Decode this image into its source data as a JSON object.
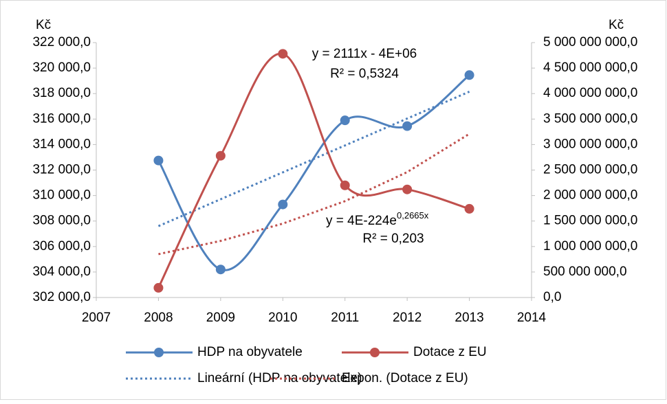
{
  "chart_data": {
    "type": "line",
    "x": [
      2008,
      2009,
      2010,
      2011,
      2012,
      2013
    ],
    "xlim": [
      2007,
      2014
    ],
    "xticks": [
      2007,
      2008,
      2009,
      2010,
      2011,
      2012,
      2013,
      2014
    ],
    "ylabel": "Kč",
    "y2label": "Kč",
    "ylim": [
      302000,
      322000
    ],
    "yticks": [
      {
        "value": 302000,
        "label": "302 000,0"
      },
      {
        "value": 304000,
        "label": "304 000,0"
      },
      {
        "value": 306000,
        "label": "306 000,0"
      },
      {
        "value": 308000,
        "label": "308 000,0"
      },
      {
        "value": 310000,
        "label": "310 000,0"
      },
      {
        "value": 312000,
        "label": "312 000,0"
      },
      {
        "value": 314000,
        "label": "314 000,0"
      },
      {
        "value": 316000,
        "label": "316 000,0"
      },
      {
        "value": 318000,
        "label": "318 000,0"
      },
      {
        "value": 320000,
        "label": "320 000,0"
      },
      {
        "value": 322000,
        "label": "322 000,0"
      }
    ],
    "y2lim": [
      0,
      5000000000
    ],
    "y2ticks": [
      {
        "value": 0,
        "label": "0,0"
      },
      {
        "value": 500000000,
        "label": "500 000 000,0"
      },
      {
        "value": 1000000000,
        "label": "1 000 000 000,0"
      },
      {
        "value": 1500000000,
        "label": "1 500 000 000,0"
      },
      {
        "value": 2000000000,
        "label": "2 000 000 000,0"
      },
      {
        "value": 2500000000,
        "label": "2 500 000 000,0"
      },
      {
        "value": 3000000000,
        "label": "3 000 000 000,0"
      },
      {
        "value": 3500000000,
        "label": "3 500 000 000,0"
      },
      {
        "value": 4000000000,
        "label": "4 000 000 000,0"
      },
      {
        "value": 4500000000,
        "label": "4 500 000 000,0"
      },
      {
        "value": 5000000000,
        "label": "5 000 000 000,0"
      }
    ],
    "series": [
      {
        "name": "HDP na obyvatele",
        "color": "#4f81bd",
        "axis": "y",
        "markers": true,
        "dotted": false,
        "values": [
          312750,
          304200,
          309300,
          315900,
          315450,
          319450
        ]
      },
      {
        "name": "Dotace z EU",
        "color": "#c0504d",
        "axis": "y2",
        "markers": true,
        "dotted": false,
        "values": [
          190000000,
          2780000000,
          4780000000,
          2200000000,
          2120000000,
          1740000000
        ]
      },
      {
        "name": "Lineární (HDP na obyvatele)",
        "color": "#4f81bd",
        "axis": "y",
        "markers": false,
        "dotted": true,
        "values": [
          307600,
          309710,
          311820,
          313930,
          316040,
          318150
        ]
      },
      {
        "name": "Expon. (Dotace z EU)",
        "color": "#c0504d",
        "axis": "y2",
        "markers": false,
        "dotted": true,
        "values": [
          850000000,
          1110000000,
          1450000000,
          1890000000,
          2460000000,
          3210000000
        ]
      }
    ],
    "annotations": [
      {
        "lines": [
          "y = 2111x - 4E+06",
          "R² = 0,5324"
        ]
      },
      {
        "text": "y = 4E-224e",
        "sup": "0,2665x",
        "r2": "R² = 0,203"
      }
    ]
  }
}
